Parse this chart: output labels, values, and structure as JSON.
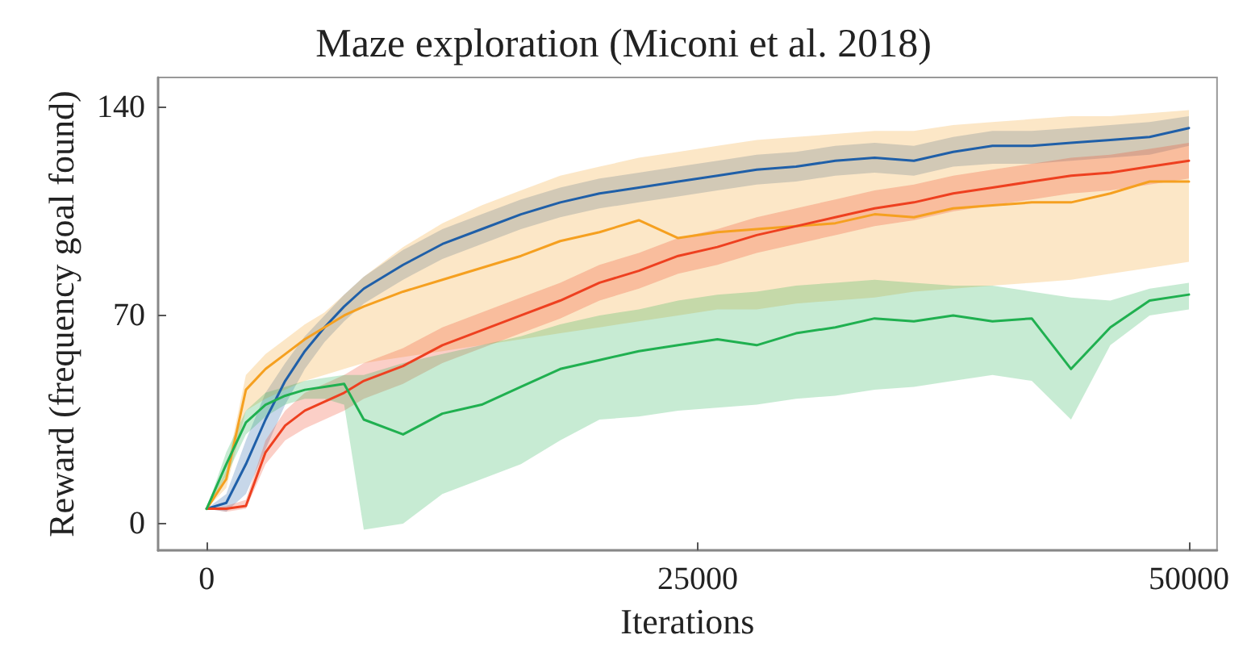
{
  "chart_data": {
    "type": "line",
    "title": "Maze exploration (Miconi et al. 2018)",
    "xlabel": "Iterations",
    "ylabel": "Reward (frequency goal found)",
    "x": [
      0,
      1000,
      2000,
      3000,
      4000,
      5000,
      6000,
      7000,
      8000,
      10000,
      12000,
      14000,
      16000,
      18000,
      20000,
      22000,
      24000,
      26000,
      28000,
      30000,
      32000,
      34000,
      36000,
      38000,
      40000,
      42000,
      44000,
      46000,
      48000,
      50000
    ],
    "xlim": [
      -2470,
      51430
    ],
    "xticks": [
      0,
      25000,
      50000
    ],
    "ylim": [
      -9,
      150
    ],
    "yticks": [
      0,
      70,
      140
    ],
    "grid": false,
    "marker": "none",
    "line_style": "solid",
    "series": [
      {
        "color": "#1f5fa8",
        "values": [
          5,
          7,
          20,
          35,
          48,
          58,
          66,
          73,
          79,
          87,
          94,
          99,
          104,
          108,
          111,
          113,
          115,
          117,
          119,
          120,
          122,
          123,
          122,
          125,
          127,
          127,
          128,
          129,
          130,
          133
        ],
        "lower": [
          5,
          4,
          10,
          25,
          40,
          52,
          61,
          68,
          74,
          82,
          89,
          94,
          99,
          103,
          106,
          108,
          110,
          112,
          114,
          115,
          117,
          118,
          117,
          120,
          121,
          121,
          122,
          123,
          124,
          127
        ],
        "upper": [
          5,
          10,
          28,
          44,
          54,
          63,
          70,
          77,
          83,
          92,
          99,
          104,
          109,
          113,
          116,
          118,
          120,
          122,
          124,
          125,
          127,
          128,
          127,
          130,
          132,
          132,
          133,
          134,
          135,
          137
        ]
      },
      {
        "color": "#f5a020",
        "values": [
          5,
          15,
          45,
          52,
          57,
          62,
          66,
          70,
          73,
          78,
          82,
          86,
          90,
          95,
          98,
          102,
          96,
          98,
          99,
          100,
          101,
          104,
          103,
          106,
          107,
          108,
          108,
          111,
          115,
          115
        ],
        "lower": [
          5,
          12,
          38,
          42,
          45,
          48,
          50,
          52,
          54,
          56,
          58,
          60,
          62,
          64,
          66,
          68,
          70,
          72,
          72,
          74,
          75,
          76,
          78,
          79,
          80,
          81,
          82,
          84,
          86,
          88
        ],
        "upper": [
          5,
          18,
          50,
          57,
          62,
          67,
          71,
          77,
          83,
          93,
          101,
          107,
          112,
          117,
          120,
          123,
          125,
          127,
          129,
          130,
          131,
          132,
          132,
          134,
          135,
          136,
          137,
          137,
          138,
          139
        ]
      },
      {
        "color": "#ee4020",
        "values": [
          5,
          5,
          6,
          24,
          33,
          38,
          41,
          44,
          48,
          53,
          60,
          65,
          70,
          75,
          81,
          85,
          90,
          93,
          97,
          100,
          103,
          106,
          108,
          111,
          113,
          115,
          117,
          118,
          120,
          122
        ],
        "lower": [
          5,
          4,
          5,
          20,
          28,
          32,
          35,
          38,
          42,
          47,
          54,
          59,
          64,
          69,
          75,
          79,
          84,
          87,
          91,
          94,
          97,
          100,
          102,
          105,
          107,
          109,
          111,
          112,
          114,
          116
        ],
        "upper": [
          5,
          6,
          8,
          28,
          38,
          44,
          47,
          50,
          54,
          59,
          66,
          71,
          76,
          81,
          87,
          91,
          96,
          99,
          103,
          106,
          109,
          112,
          114,
          117,
          119,
          121,
          123,
          124,
          126,
          128
        ]
      },
      {
        "color": "#20b050",
        "values": [
          5,
          20,
          34,
          40,
          43,
          45,
          46,
          47,
          35,
          30,
          37,
          40,
          46,
          52,
          55,
          58,
          60,
          62,
          60,
          64,
          66,
          69,
          68,
          70,
          68,
          69,
          52,
          66,
          75,
          77
        ],
        "lower": [
          5,
          16,
          30,
          36,
          40,
          42,
          42,
          40,
          -2,
          0,
          10,
          15,
          20,
          28,
          35,
          36,
          38,
          39,
          40,
          42,
          43,
          45,
          46,
          48,
          50,
          48,
          35,
          60,
          70,
          72
        ],
        "upper": [
          5,
          24,
          38,
          44,
          46,
          48,
          49,
          50,
          50,
          54,
          57,
          60,
          63,
          67,
          70,
          72,
          75,
          77,
          78,
          80,
          81,
          82,
          81,
          80,
          80,
          78,
          76,
          75,
          79,
          81
        ]
      }
    ]
  }
}
